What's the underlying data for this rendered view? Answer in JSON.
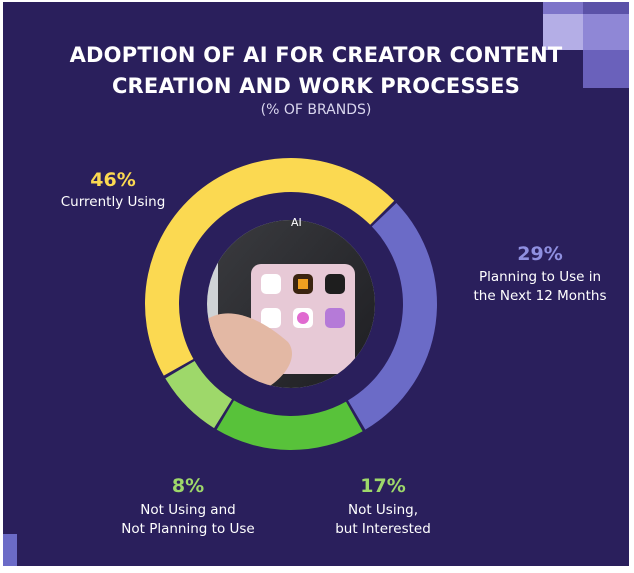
{
  "title_line1": "ADOPTION OF AI FOR CREATOR CONTENT",
  "title_line2": "CREATION AND WORK PROCESSES",
  "subtitle": "(% OF BRANDS)",
  "center_label": "AI",
  "colors": {
    "background": "#2a1f5c",
    "currently_using": "#fbd951",
    "planning": "#6b6bc7",
    "interested": "#58c23a",
    "not_planning": "#9ed86a"
  },
  "chart_data": {
    "type": "pie",
    "title": "ADOPTION OF AI FOR CREATOR CONTENT CREATION AND WORK PROCESSES",
    "subtitle": "(% OF BRANDS)",
    "unit": "%",
    "slices": [
      {
        "label": "Currently Using",
        "value": 46,
        "value_label": "46%",
        "color": "#fbd951",
        "label_lines": [
          "Currently Using"
        ]
      },
      {
        "label": "Planning to Use in the Next 12 Months",
        "value": 29,
        "value_label": "29%",
        "color": "#6b6bc7",
        "label_lines": [
          "Planning to Use in",
          "the Next 12 Months"
        ]
      },
      {
        "label": "Not Using, but Interested",
        "value": 17,
        "value_label": "17%",
        "color": "#58c23a",
        "label_lines": [
          "Not Using,",
          "but Interested"
        ]
      },
      {
        "label": "Not Using and Not Planning to Use",
        "value": 8,
        "value_label": "8%",
        "color": "#9ed86a",
        "label_lines": [
          "Not Using and",
          "Not Planning to Use"
        ]
      }
    ]
  }
}
